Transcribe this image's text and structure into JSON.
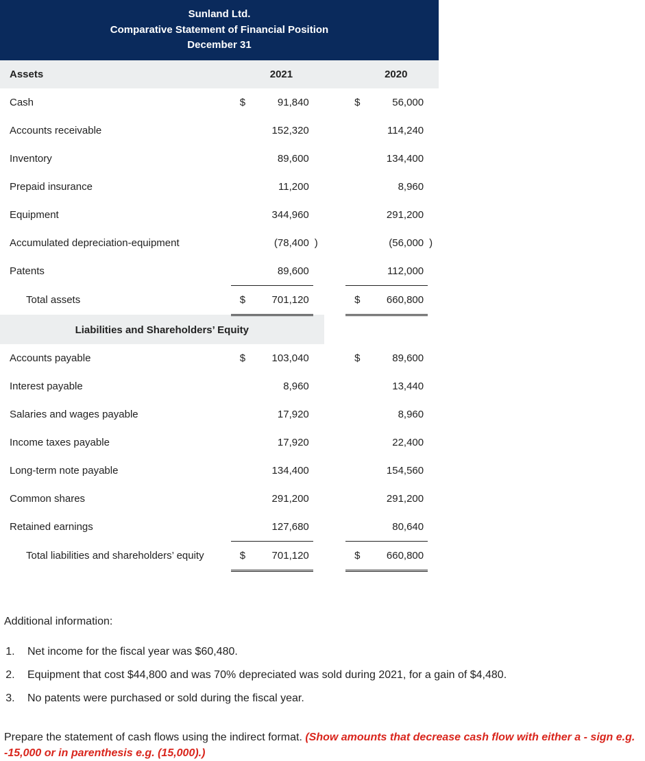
{
  "header": {
    "line1": "Sunland Ltd.",
    "line2": "Comparative Statement of Financial Position",
    "line3": "December 31",
    "bg_color": "#0a2a5c",
    "text_color": "#ffffff"
  },
  "years": {
    "col1": "2021",
    "col2": "2020"
  },
  "assets": {
    "section_label": "Assets",
    "rows": [
      {
        "label": "Cash",
        "cur1": "$",
        "v1": "91,840",
        "p1": "",
        "cur2": "$",
        "v2": "56,000",
        "p2": ""
      },
      {
        "label": "Accounts receivable",
        "cur1": "",
        "v1": "152,320",
        "p1": "",
        "cur2": "",
        "v2": "114,240",
        "p2": ""
      },
      {
        "label": "Inventory",
        "cur1": "",
        "v1": "89,600",
        "p1": "",
        "cur2": "",
        "v2": "134,400",
        "p2": ""
      },
      {
        "label": "Prepaid insurance",
        "cur1": "",
        "v1": "11,200",
        "p1": "",
        "cur2": "",
        "v2": "8,960",
        "p2": ""
      },
      {
        "label": "Equipment",
        "cur1": "",
        "v1": "344,960",
        "p1": "",
        "cur2": "",
        "v2": "291,200",
        "p2": ""
      },
      {
        "label": "Accumulated depreciation-equipment",
        "cur1": "",
        "v1": "(78,400",
        "p1": ")",
        "cur2": "",
        "v2": "(56,000",
        "p2": ")"
      },
      {
        "label": "Patents",
        "cur1": "",
        "v1": "89,600",
        "p1": "",
        "cur2": "",
        "v2": "112,000",
        "p2": ""
      }
    ],
    "total": {
      "label": "Total assets",
      "cur1": "$",
      "v1": "701,120",
      "cur2": "$",
      "v2": "660,800"
    }
  },
  "mid_section_label": "Liabilities and Shareholders’ Equity",
  "liab": {
    "rows": [
      {
        "label": "Accounts payable",
        "cur1": "$",
        "v1": "103,040",
        "cur2": "$",
        "v2": "89,600"
      },
      {
        "label": "Interest payable",
        "cur1": "",
        "v1": "8,960",
        "cur2": "",
        "v2": "13,440"
      },
      {
        "label": "Salaries and wages payable",
        "cur1": "",
        "v1": "17,920",
        "cur2": "",
        "v2": "8,960"
      },
      {
        "label": "Income taxes payable",
        "cur1": "",
        "v1": "17,920",
        "cur2": "",
        "v2": "22,400"
      },
      {
        "label": "Long-term note payable",
        "cur1": "",
        "v1": "134,400",
        "cur2": "",
        "v2": "154,560"
      },
      {
        "label": "Common shares",
        "cur1": "",
        "v1": "291,200",
        "cur2": "",
        "v2": "291,200"
      },
      {
        "label": "Retained earnings",
        "cur1": "",
        "v1": "127,680",
        "cur2": "",
        "v2": "80,640"
      }
    ],
    "total": {
      "label": "Total liabilities and shareholders’ equity",
      "cur1": "$",
      "v1": "701,120",
      "cur2": "$",
      "v2": "660,800"
    }
  },
  "additional": {
    "heading": "Additional information:",
    "items": [
      "Net income for the fiscal year was $60,480.",
      "Equipment that cost $44,800 and was 70% depreciated was sold during 2021, for a gain of $4,480.",
      "No patents were purchased or sold during the fiscal year."
    ]
  },
  "instruction": {
    "black": "Prepare the statement of cash flows using the indirect format. ",
    "red": "(Show amounts that decrease cash flow with either a - sign e.g. -15,000 or in parenthesis e.g. (15,000).)"
  },
  "colors": {
    "section_bg": "#eceeef",
    "text": "#222222",
    "red": "#d9251c"
  }
}
